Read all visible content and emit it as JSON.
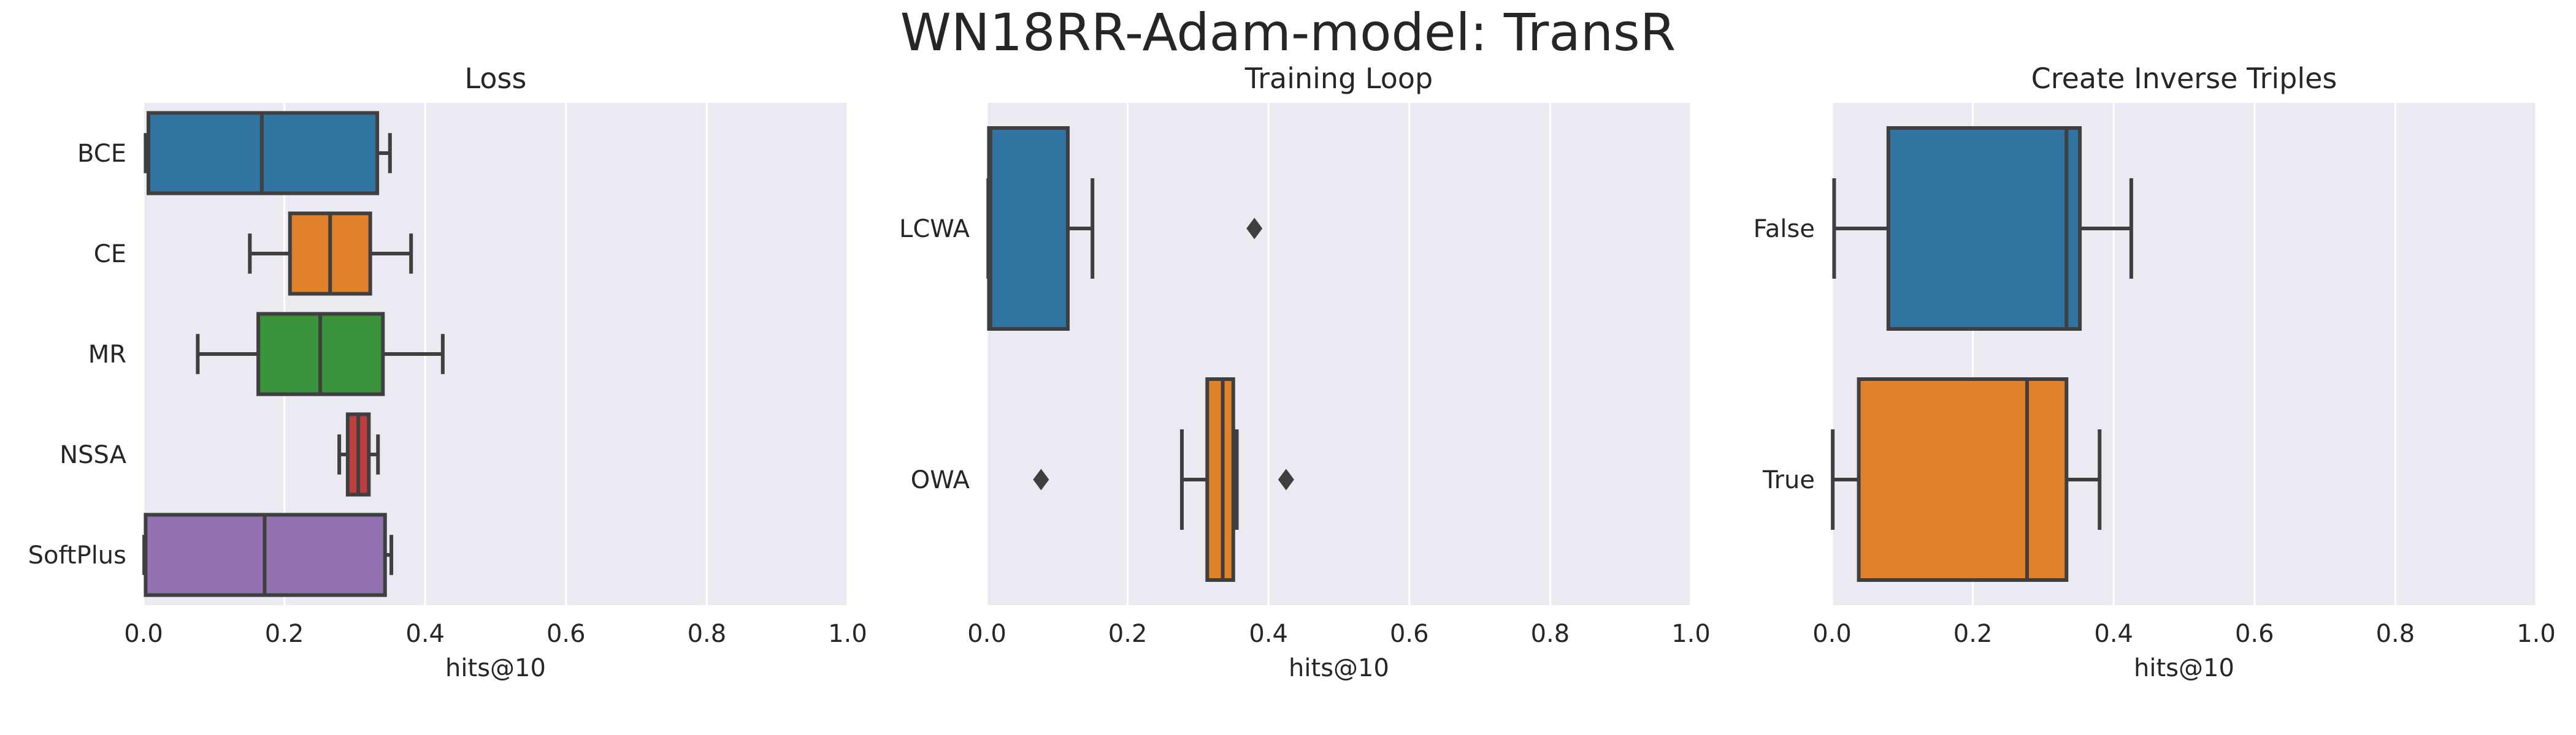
{
  "figure": {
    "suptitle": "WN18RR-Adam-model: TransR"
  },
  "chart_data": [
    {
      "type": "box",
      "orientation": "horizontal",
      "title": "Loss",
      "xlabel": "hits@10",
      "ylabel": "",
      "xlim": [
        0,
        1
      ],
      "xticks": [
        "0.0",
        "0.2",
        "0.4",
        "0.6",
        "0.8",
        "1.0"
      ],
      "grid": true,
      "categories": [
        "BCE",
        "CE",
        "MR",
        "NSSA",
        "SoftPlus"
      ],
      "boxes": [
        {
          "category": "BCE",
          "whisker_low": 0.003,
          "q1": 0.007,
          "median": 0.168,
          "q3": 0.332,
          "whisker_high": 0.35,
          "fliers": [],
          "color": "#3274a1"
        },
        {
          "category": "CE",
          "whisker_low": 0.151,
          "q1": 0.208,
          "median": 0.265,
          "q3": 0.322,
          "whisker_high": 0.38,
          "fliers": [],
          "color": "#e1812c"
        },
        {
          "category": "MR",
          "whisker_low": 0.077,
          "q1": 0.163,
          "median": 0.251,
          "q3": 0.34,
          "whisker_high": 0.425,
          "fliers": [],
          "color": "#3a923a"
        },
        {
          "category": "NSSA",
          "whisker_low": 0.278,
          "q1": 0.29,
          "median": 0.305,
          "q3": 0.32,
          "whisker_high": 0.333,
          "fliers": [],
          "color": "#c03d3e"
        },
        {
          "category": "SoftPlus",
          "whisker_low": 0.001,
          "q1": 0.003,
          "median": 0.172,
          "q3": 0.343,
          "whisker_high": 0.352,
          "fliers": [],
          "color": "#9372b2"
        }
      ]
    },
    {
      "type": "box",
      "orientation": "horizontal",
      "title": "Training Loop",
      "xlabel": "hits@10",
      "ylabel": "",
      "xlim": [
        0,
        1
      ],
      "xticks": [
        "0.0",
        "0.2",
        "0.4",
        "0.6",
        "0.8",
        "1.0"
      ],
      "grid": true,
      "categories": [
        "LCWA",
        "OWA"
      ],
      "boxes": [
        {
          "category": "LCWA",
          "whisker_low": 0.002,
          "q1": 0.003,
          "median": 0.005,
          "q3": 0.115,
          "whisker_high": 0.15,
          "fliers": [
            0.38
          ],
          "color": "#3274a1"
        },
        {
          "category": "OWA",
          "whisker_low": 0.277,
          "q1": 0.313,
          "median": 0.335,
          "q3": 0.35,
          "whisker_high": 0.355,
          "fliers": [
            0.077,
            0.425
          ],
          "color": "#e1812c"
        }
      ]
    },
    {
      "type": "box",
      "orientation": "horizontal",
      "title": "Create Inverse Triples",
      "xlabel": "hits@10",
      "ylabel": "",
      "xlim": [
        0,
        1
      ],
      "xticks": [
        "0.0",
        "0.2",
        "0.4",
        "0.6",
        "0.8",
        "1.0"
      ],
      "grid": true,
      "categories": [
        "False",
        "True"
      ],
      "boxes": [
        {
          "category": "False",
          "whisker_low": 0.003,
          "q1": 0.08,
          "median": 0.333,
          "q3": 0.352,
          "whisker_high": 0.425,
          "fliers": [],
          "color": "#3274a1"
        },
        {
          "category": "True",
          "whisker_low": 0.001,
          "q1": 0.038,
          "median": 0.277,
          "q3": 0.333,
          "whisker_high": 0.38,
          "fliers": [],
          "color": "#e1812c"
        }
      ]
    }
  ]
}
